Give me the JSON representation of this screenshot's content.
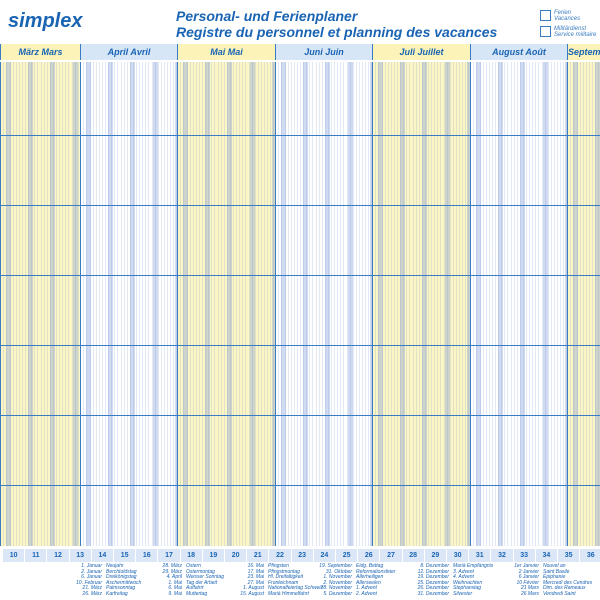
{
  "header": {
    "logo": "simplex",
    "title_de": "Personal- und Ferienplaner",
    "title_fr": "Registre du personnel et planning des vacances",
    "legend": [
      {
        "de": "Ferien",
        "fr": "Vacances"
      },
      {
        "de": "Militärdienst",
        "fr": "Service militaire"
      }
    ]
  },
  "months": [
    "März  Mars",
    "April  Avril",
    "Mai  Mai",
    "Juni  Juin",
    "Juli  Juillet",
    "August  Août",
    "Septem"
  ],
  "weeks": [
    "10",
    "11",
    "12",
    "13",
    "14",
    "15",
    "16",
    "17",
    "18",
    "19",
    "20",
    "21",
    "22",
    "23",
    "24",
    "25",
    "26",
    "27",
    "28",
    "29",
    "30",
    "31",
    "32",
    "33",
    "34",
    "35",
    "36"
  ],
  "holidays": [
    [
      [
        "1. Januar",
        "Neujahr"
      ],
      [
        "2. Januar",
        "Berchtoldstag"
      ],
      [
        "6. Januar",
        "Dreikönigstag"
      ],
      [
        "10. Februar",
        "Aschermittwoch"
      ],
      [
        "21. März",
        "Palmsonntag"
      ],
      [
        "26. März",
        "Karfreitag"
      ]
    ],
    [
      [
        "28. März",
        "Ostern"
      ],
      [
        "29. März",
        "Ostermontag"
      ],
      [
        "4. April",
        "Weisser Sonntag"
      ],
      [
        "1. Mai",
        "Tag der Arbeit"
      ],
      [
        "6. Mai",
        "Auffahrt"
      ],
      [
        "9. Mai",
        "Muttertag"
      ]
    ],
    [
      [
        "16. Mai",
        "Pfingsten"
      ],
      [
        "17. Mai",
        "Pfingstmontag"
      ],
      [
        "23. Mai",
        "Hl. Dreifaltigkeit"
      ],
      [
        "27. Mai",
        "Fronleichnam"
      ],
      [
        "1. August",
        "Nationalfeiertag Schweiz"
      ],
      [
        "15. August",
        "Mariä Himmelfahrt"
      ]
    ],
    [
      [
        "19. September",
        "Eidg. Bettag"
      ],
      [
        "31. Oktober",
        "Reformationsfeier"
      ],
      [
        "1. November",
        "Allerheiligen"
      ],
      [
        "2. November",
        "Allerseelen"
      ],
      [
        "28. November",
        "1. Advent"
      ],
      [
        "5. Dezember",
        "2. Advent"
      ]
    ],
    [
      [
        "8. Dezember",
        "Mariä Empfängnis"
      ],
      [
        "12. Dezember",
        "3. Advent"
      ],
      [
        "19. Dezember",
        "4. Advent"
      ],
      [
        "25. Dezember",
        "Weihnachten"
      ],
      [
        "26. Dezember",
        "Stephanstag"
      ],
      [
        "31. Dezember",
        "Silvester"
      ]
    ],
    [
      [
        "1er Janvier",
        "Nouvel an"
      ],
      [
        "2 Janvier",
        "Saint Basile"
      ],
      [
        "6 Janvier",
        "Epiphanie"
      ],
      [
        "10 Février",
        "Mercredi des Cendres"
      ],
      [
        "21 Mars",
        "Dim. des Rameaux"
      ],
      [
        "26 Mars",
        "Vendredi Saint"
      ]
    ]
  ]
}
